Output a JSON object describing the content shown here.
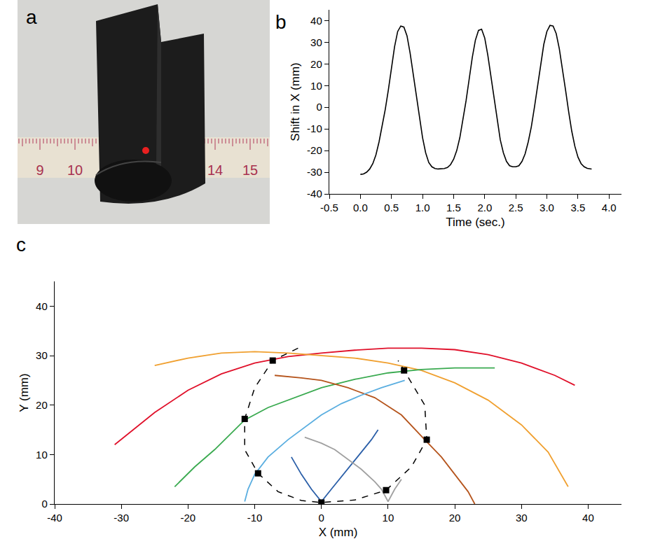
{
  "photo": {
    "title": "a",
    "ruler_labels": [
      9,
      10,
      14,
      15
    ]
  },
  "chart_data": [
    {
      "type": "line",
      "title": "b",
      "x_label": "Time (sec.)",
      "y_label": "Shift in X (mm)",
      "color": "#000000",
      "x": [
        0.0,
        0.05,
        0.1,
        0.15,
        0.2,
        0.25,
        0.3,
        0.35,
        0.4,
        0.45,
        0.5,
        0.55,
        0.6,
        0.65,
        0.7,
        0.75,
        0.8,
        0.85,
        0.9,
        0.95,
        1.0,
        1.05,
        1.1,
        1.15,
        1.2,
        1.25,
        1.3,
        1.35,
        1.4,
        1.45,
        1.5,
        1.55,
        1.6,
        1.65,
        1.7,
        1.75,
        1.8,
        1.85,
        1.9,
        1.95,
        2.0,
        2.05,
        2.1,
        2.15,
        2.2,
        2.25,
        2.3,
        2.35,
        2.4,
        2.45,
        2.5,
        2.55,
        2.6,
        2.65,
        2.7,
        2.75,
        2.8,
        2.85,
        2.9,
        2.95,
        3.0,
        3.05,
        3.1,
        3.15,
        3.2,
        3.25,
        3.3,
        3.35,
        3.4,
        3.45,
        3.5,
        3.55,
        3.6,
        3.65,
        3.7,
        3.72
      ],
      "values": [
        -31,
        -30.8,
        -30,
        -28.5,
        -26,
        -22,
        -16,
        -9,
        -1,
        8,
        18,
        28,
        35,
        37.5,
        37,
        33,
        25,
        15,
        5,
        -5,
        -14,
        -21,
        -25.5,
        -27.5,
        -28.3,
        -28.5,
        -28.5,
        -28.3,
        -27.8,
        -26.5,
        -24,
        -20,
        -14,
        -6,
        3,
        13,
        23,
        31,
        35.5,
        36,
        32,
        24,
        14,
        4,
        -6,
        -15,
        -21,
        -25,
        -27,
        -27.5,
        -27.5,
        -27,
        -25,
        -21.5,
        -16,
        -9,
        0,
        10,
        20,
        29,
        35,
        37.8,
        37.5,
        34,
        27,
        18,
        8,
        -2,
        -11,
        -18,
        -23,
        -26,
        -27.5,
        -28.2,
        -28.5,
        -28.5
      ],
      "xlim": [
        -0.5,
        4.2
      ],
      "xticks": [
        -0.5,
        {
          "value": 0,
          "label": "0.0"
        },
        0.5,
        {
          "value": 1,
          "label": "1.0"
        },
        1.5,
        {
          "value": 2,
          "label": "2.0"
        },
        2.5,
        {
          "value": 3,
          "label": "3.0"
        },
        3.5,
        {
          "value": 4,
          "label": "4.0"
        }
      ],
      "ylim": [
        -40,
        45
      ],
      "yticks": [
        -40,
        -30,
        -20,
        -10,
        0,
        10,
        20,
        30,
        40
      ]
    },
    {
      "type": "scatter",
      "title": "c",
      "x_label": "X (mm)",
      "y_label": "Y (mm)",
      "series": [
        {
          "type": "line",
          "color": "#e0102a",
          "line_style": "solid",
          "x": [
            -31,
            -25,
            -20,
            -15,
            -10,
            -5,
            0,
            5,
            10,
            15,
            20,
            25,
            30,
            35,
            38
          ],
          "values": [
            12,
            18.5,
            23,
            26.3,
            28.5,
            29.8,
            30.5,
            31.1,
            31.5,
            31.5,
            31.2,
            30.2,
            28.5,
            26,
            24
          ]
        },
        {
          "type": "line",
          "color": "#f0a030",
          "line_style": "solid",
          "x": [
            -25,
            -20,
            -15,
            -10,
            -5,
            0,
            5,
            10,
            15,
            20,
            25,
            30,
            34,
            37
          ],
          "values": [
            28,
            29.5,
            30.5,
            30.8,
            30.5,
            30,
            29.5,
            28.5,
            27,
            24.5,
            21,
            16,
            10.5,
            3.5
          ]
        },
        {
          "type": "line",
          "color": "#3aaa50",
          "line_style": "solid",
          "x": [
            -22,
            -19,
            -16,
            -11.5,
            -8,
            -5,
            0,
            5,
            10,
            15,
            20,
            26
          ],
          "values": [
            3.5,
            7.5,
            11,
            17,
            19.5,
            21,
            23.5,
            25.2,
            26.5,
            27.2,
            27.5,
            27.5
          ]
        },
        {
          "type": "line",
          "color": "#b5541c",
          "line_style": "solid",
          "x": [
            -7,
            -3,
            0,
            4,
            8,
            12,
            15.5,
            18,
            20,
            22,
            23
          ],
          "values": [
            26,
            25.5,
            25,
            23.5,
            21.5,
            18,
            13,
            9.5,
            6,
            2.5,
            0
          ]
        },
        {
          "type": "line",
          "color": "#5aaee0",
          "line_style": "solid",
          "x": [
            -11.5,
            -11,
            -10,
            -8,
            -5,
            -2,
            0,
            3,
            6,
            9,
            12.5
          ],
          "values": [
            0.5,
            3,
            6,
            9.5,
            13,
            16,
            18,
            20.3,
            22,
            23.5,
            25
          ]
        },
        {
          "type": "line",
          "color": "#2b5fa8",
          "line_style": "solid",
          "x": [
            -4.5,
            -3,
            -1.5,
            0,
            1.5,
            3,
            4.5,
            6,
            7.5,
            8.5
          ],
          "values": [
            9.5,
            6,
            3,
            0.5,
            3,
            5.5,
            8,
            10.5,
            13,
            15
          ]
        },
        {
          "type": "line",
          "color": "#a0a0a0",
          "line_style": "solid",
          "x": [
            -2.5,
            0,
            2,
            4,
            6,
            8,
            9,
            10,
            11,
            12
          ],
          "values": [
            13.5,
            12.3,
            11,
            9,
            7,
            4.5,
            3,
            0.5,
            3,
            5
          ]
        },
        {
          "type": "line",
          "color": "#000000",
          "line_style": "dash",
          "x": [
            -3.5,
            -7.3,
            -10,
            -11.5,
            -11.5,
            -9.5,
            -6.5,
            -3,
            0,
            5,
            9.7,
            13.5,
            15.8,
            15.5,
            12.4,
            11.5
          ],
          "values": [
            31.5,
            29,
            23.5,
            17.2,
            11,
            6.2,
            2.5,
            0.7,
            0.3,
            0.8,
            2.8,
            7.5,
            13,
            20,
            27,
            29
          ]
        },
        {
          "type": "scatter",
          "color": "#000000",
          "marker": "square",
          "x": [
            0,
            9.7,
            15.8,
            12.4,
            -7.3,
            -11.5,
            -9.5
          ],
          "values": [
            0.3,
            2.8,
            13,
            27,
            29,
            17.2,
            6.2
          ]
        }
      ],
      "xlim": [
        -40,
        45
      ],
      "xticks": [
        -40,
        -30,
        -20,
        -10,
        0,
        10,
        20,
        30,
        40
      ],
      "ylim": [
        0,
        45
      ],
      "yticks": [
        0,
        10,
        20,
        30,
        40
      ]
    }
  ]
}
